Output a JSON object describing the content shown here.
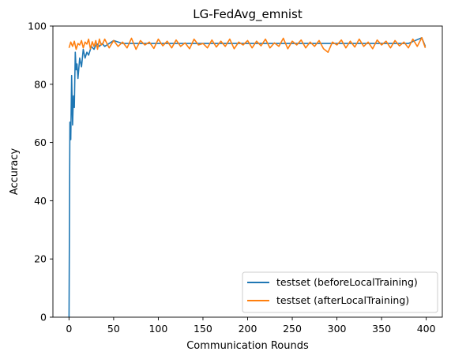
{
  "chart_data": {
    "type": "line",
    "title": "LG-FedAvg_emnist",
    "xlabel": "Communication Rounds",
    "ylabel": "Accuracy",
    "xlim": [
      -18,
      418
    ],
    "ylim": [
      0,
      100
    ],
    "xticks": [
      0,
      50,
      100,
      150,
      200,
      250,
      300,
      350,
      400
    ],
    "yticks": [
      0,
      20,
      40,
      60,
      80,
      100
    ],
    "grid": false,
    "legend_position": "lower-right",
    "colors": {
      "series1": "#1f77b4",
      "series2": "#ff7f0e"
    },
    "series": [
      {
        "name": "testset (beforeLocalTraining)",
        "color": "#1f77b4",
        "x": [
          0,
          1,
          2,
          3,
          4,
          5,
          6,
          7,
          8,
          9,
          10,
          12,
          14,
          16,
          18,
          20,
          22,
          25,
          28,
          31,
          34,
          37,
          40,
          45,
          50,
          60,
          70,
          80,
          90,
          100,
          120,
          140,
          160,
          180,
          200,
          220,
          240,
          260,
          280,
          300,
          320,
          340,
          360,
          380,
          395,
          399
        ],
        "values": [
          0,
          67,
          61,
          83,
          66,
          76,
          72,
          91,
          85,
          87,
          82,
          89,
          86,
          92,
          89,
          91,
          90,
          93,
          92,
          94,
          93,
          94,
          93,
          94,
          95,
          94,
          94,
          94,
          94,
          94,
          94,
          94,
          94,
          94,
          94,
          94,
          94,
          94,
          94,
          94,
          94,
          94,
          94,
          94,
          96,
          93
        ]
      },
      {
        "name": "testset (afterLocalTraining)",
        "color": "#ff7f0e",
        "x": [
          0,
          2,
          4,
          6,
          8,
          10,
          12,
          14,
          16,
          18,
          20,
          22,
          24,
          26,
          28,
          30,
          32,
          34,
          36,
          38,
          40,
          45,
          50,
          55,
          60,
          65,
          70,
          75,
          80,
          85,
          90,
          95,
          100,
          105,
          110,
          115,
          120,
          125,
          130,
          135,
          140,
          145,
          150,
          155,
          160,
          165,
          170,
          175,
          180,
          185,
          190,
          195,
          200,
          205,
          210,
          215,
          220,
          225,
          230,
          235,
          240,
          245,
          250,
          255,
          260,
          265,
          270,
          275,
          280,
          285,
          290,
          295,
          300,
          305,
          310,
          315,
          320,
          325,
          330,
          335,
          340,
          345,
          350,
          355,
          360,
          365,
          370,
          375,
          380,
          385,
          390,
          395,
          399
        ],
        "values": [
          92.5,
          94.5,
          93,
          94.8,
          92,
          94,
          93.5,
          95,
          92.5,
          94.5,
          93.8,
          95.5,
          92.2,
          94.6,
          93,
          95,
          92,
          95.5,
          93.5,
          94,
          95.5,
          92.5,
          95,
          93,
          94.5,
          92.5,
          95.8,
          92,
          95,
          93.5,
          94.5,
          92.3,
          95.5,
          93.2,
          94.8,
          92.5,
          95.2,
          93,
          94.2,
          92.2,
          95.5,
          93.5,
          94,
          92.5,
          95.2,
          92.8,
          94.8,
          93,
          95.5,
          92.2,
          94.5,
          93.5,
          95,
          92.5,
          94.8,
          93.2,
          95.5,
          92.5,
          94.2,
          93,
          95.8,
          92.2,
          94.8,
          93.5,
          95.2,
          92.5,
          94.5,
          93,
          95,
          92.2,
          91,
          94.5,
          93.5,
          95.2,
          92.5,
          94.8,
          92.8,
          95.5,
          93,
          94.5,
          92.2,
          95.2,
          93.5,
          94.8,
          92.5,
          95,
          93.2,
          94.5,
          92.5,
          95.5,
          93,
          96,
          92.5
        ]
      }
    ]
  }
}
